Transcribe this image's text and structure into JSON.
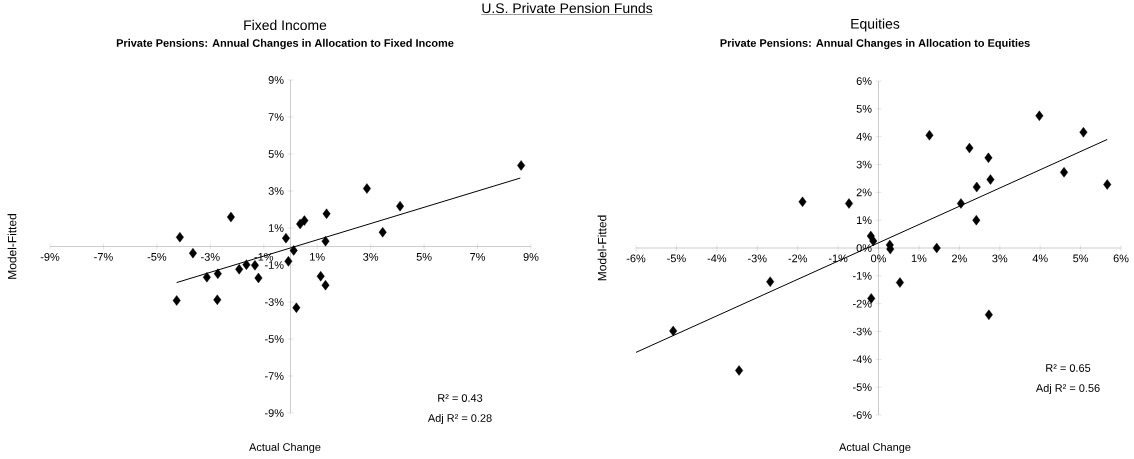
{
  "chart_data": [
    {
      "type": "scatter",
      "title": "Fixed Income",
      "subtitle": "Private Pensions:  Annual Changes  in Allocation to Fixed Income",
      "xlabel": "Actual Change",
      "ylabel": "Model-Fitted",
      "marker": "diamond",
      "annotations": [
        "U.S. Private Pension Funds",
        "R² = 0.43",
        "Adj R² = 0.28"
      ],
      "xlim": [
        -9,
        9
      ],
      "ylim": [
        -9,
        9
      ],
      "xticks": [
        {
          "value": -9,
          "label": "-9%"
        },
        {
          "value": -7,
          "label": "-7%"
        },
        {
          "value": -5,
          "label": "-5%"
        },
        {
          "value": -3,
          "label": "-3%"
        },
        {
          "value": -1,
          "label": "-1%"
        },
        {
          "value": 1,
          "label": "1%"
        },
        {
          "value": 3,
          "label": "3%"
        },
        {
          "value": 5,
          "label": "5%"
        },
        {
          "value": 7,
          "label": "7%"
        },
        {
          "value": 9,
          "label": "9%"
        }
      ],
      "yticks": [
        {
          "value": -9,
          "label": "-9%"
        },
        {
          "value": -7,
          "label": "-7%"
        },
        {
          "value": -5,
          "label": "-5%"
        },
        {
          "value": -3,
          "label": "-3%"
        },
        {
          "value": -1,
          "label": "-1%"
        },
        {
          "value": 1,
          "label": "1%"
        },
        {
          "value": 3,
          "label": "3%"
        },
        {
          "value": 5,
          "label": "5%"
        },
        {
          "value": 7,
          "label": "7%"
        },
        {
          "value": 9,
          "label": "9%"
        }
      ],
      "series": [
        {
          "color": "#000000",
          "x": [
            8.63,
            2.86,
            4.1,
            3.45,
            1.35,
            1.31,
            0.52,
            0.36,
            -0.17,
            0.12,
            -0.08,
            0.22,
            1.13,
            1.31,
            -2.23,
            -4.14,
            -3.65,
            -4.26,
            -3.13,
            -2.72,
            -2.74,
            -1.92,
            -1.65,
            -1.33,
            -1.2
          ],
          "values": [
            4.38,
            3.13,
            2.18,
            0.77,
            1.77,
            0.29,
            1.4,
            1.22,
            0.45,
            -0.21,
            -0.8,
            -3.31,
            -1.61,
            -2.09,
            1.59,
            0.5,
            -0.36,
            -2.92,
            -1.66,
            -1.47,
            -2.88,
            -1.23,
            -0.98,
            -1.02,
            -1.7
          ]
        },
        {
          "type": "line",
          "marker": "none",
          "color": "#000000",
          "x": [
            -4.26,
            8.6
          ],
          "values": [
            -1.95,
            3.7
          ]
        }
      ]
    },
    {
      "type": "scatter",
      "title": "Equities",
      "subtitle": "Private Pensions:  Annual Changes  in Allocation to Equities",
      "xlabel": "Actual Change",
      "ylabel": "Model-Fitted",
      "marker": "diamond",
      "annotations": [
        "R² = 0.65",
        "Adj R² = 0.56"
      ],
      "xlim": [
        -6,
        6
      ],
      "ylim": [
        -6,
        6
      ],
      "xticks": [
        {
          "value": -6,
          "label": "-6%"
        },
        {
          "value": -5,
          "label": "-5%"
        },
        {
          "value": -4,
          "label": "-4%"
        },
        {
          "value": -3,
          "label": "-3%"
        },
        {
          "value": -2,
          "label": "-2%"
        },
        {
          "value": -1,
          "label": "-1%"
        },
        {
          "value": 0,
          "label": "0%"
        },
        {
          "value": 1,
          "label": "1%"
        },
        {
          "value": 2,
          "label": "2%"
        },
        {
          "value": 3,
          "label": "3%"
        },
        {
          "value": 4,
          "label": "4%"
        },
        {
          "value": 5,
          "label": "5%"
        },
        {
          "value": 6,
          "label": "6%"
        }
      ],
      "yticks": [
        {
          "value": -6,
          "label": "-6%"
        },
        {
          "value": -5,
          "label": "-5%"
        },
        {
          "value": -4,
          "label": "-4%"
        },
        {
          "value": -3,
          "label": "-3%"
        },
        {
          "value": -2,
          "label": "-2%"
        },
        {
          "value": -1,
          "label": "-1%"
        },
        {
          "value": 0,
          "label": "0%"
        },
        {
          "value": 1,
          "label": "1%"
        },
        {
          "value": 2,
          "label": "2%"
        },
        {
          "value": 3,
          "label": "3%"
        },
        {
          "value": 4,
          "label": "4%"
        },
        {
          "value": 5,
          "label": "5%"
        },
        {
          "value": 6,
          "label": "6%"
        }
      ],
      "series": [
        {
          "color": "#000000",
          "x": [
            -5.08,
            -3.45,
            -2.68,
            -1.88,
            -0.73,
            -0.19,
            -0.13,
            -0.18,
            0.28,
            0.29,
            0.53,
            1.44,
            1.26,
            2.25,
            2.72,
            2.77,
            2.43,
            2.04,
            2.42,
            2.73,
            3.98,
            5.07,
            4.59,
            5.66
          ],
          "values": [
            -2.98,
            -4.4,
            -1.21,
            1.66,
            1.6,
            0.43,
            0.25,
            -1.81,
            0.11,
            -0.04,
            -1.24,
            0.0,
            4.05,
            3.59,
            3.24,
            2.46,
            2.19,
            1.6,
            1.0,
            -2.4,
            4.75,
            4.16,
            2.72,
            2.28
          ]
        },
        {
          "type": "line",
          "marker": "none",
          "color": "#000000",
          "x": [
            -6.0,
            5.66
          ],
          "values": [
            -3.75,
            3.9
          ]
        }
      ]
    }
  ]
}
